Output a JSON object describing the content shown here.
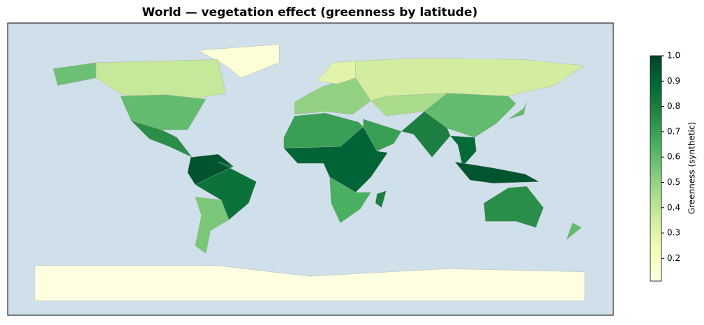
{
  "chart_data": {
    "type": "choropleth",
    "title": "World — vegetation effect (greenness by latitude)",
    "colorbar_label": "Greenness (synthetic)",
    "colormap": "YlGn",
    "clim": [
      0.11,
      1.0
    ],
    "cticks": [
      0.2,
      0.3,
      0.4,
      0.5,
      0.6,
      0.7,
      0.8,
      0.9,
      {
        "value": 1.0,
        "label": "1.0"
      }
    ],
    "values": [
      0.15,
      0.38,
      0.58,
      0.6,
      0.75,
      0.95,
      0.85,
      0.55,
      0.5,
      0.3,
      0.35,
      0.45,
      0.6,
      0.7,
      0.8,
      0.88,
      0.95,
      0.7,
      0.9,
      0.65,
      0.8,
      0.75,
      0.6,
      0.6,
      0.12
    ]
  }
}
